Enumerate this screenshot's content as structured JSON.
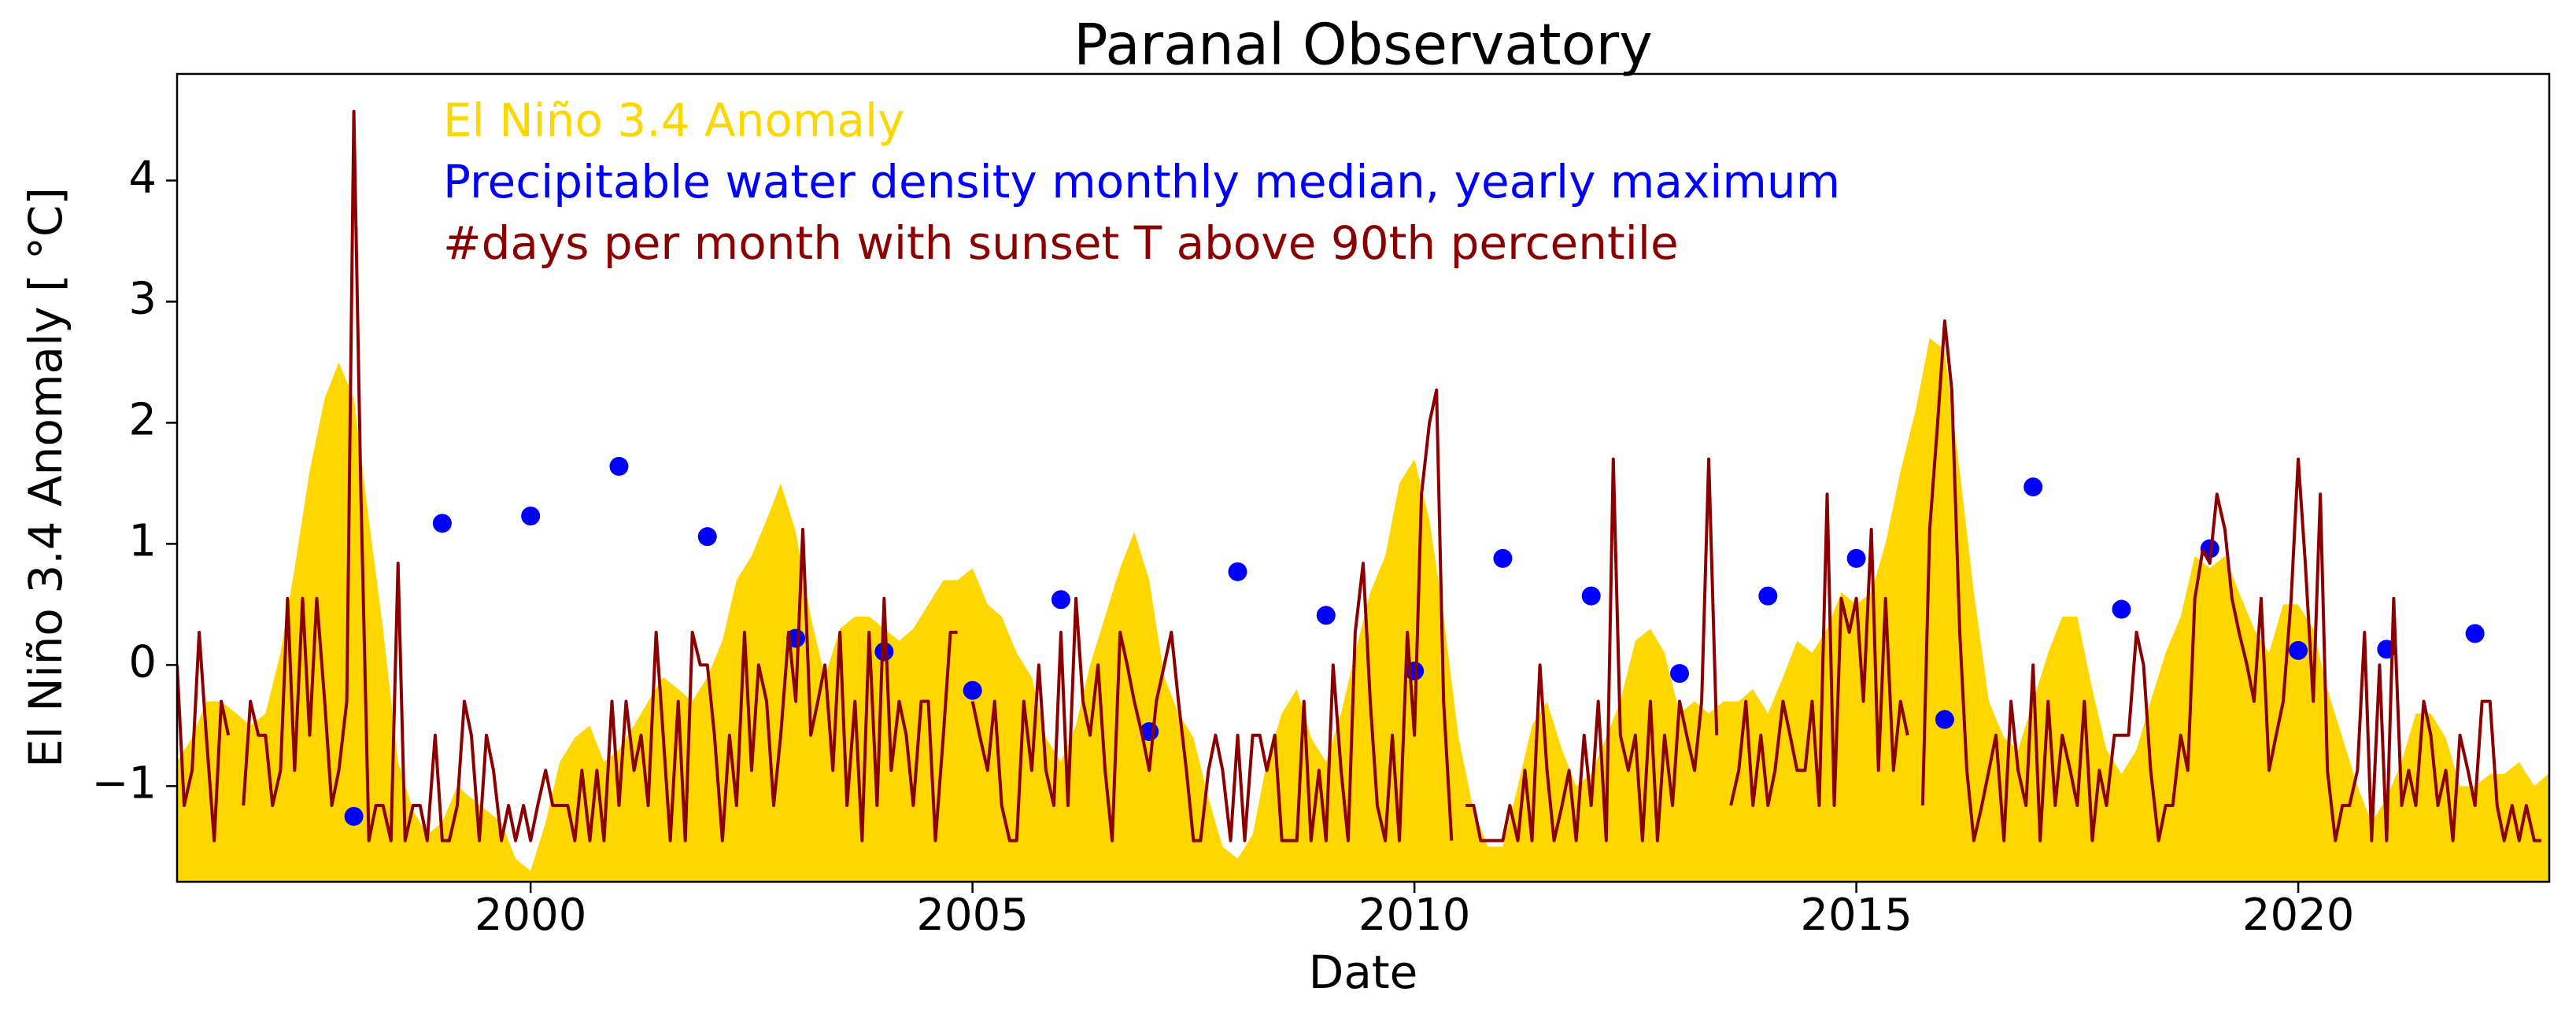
{
  "chart_data": {
    "type": "line",
    "title": "Paranal Observatory",
    "xlabel": "Date",
    "ylabel": "El Niño 3.4 Anomaly [ °C]",
    "xlim": [
      1996.0,
      2022.84
    ],
    "ylim": [
      -1.79,
      4.88
    ],
    "xticks": [
      2000,
      2005,
      2010,
      2015,
      2020
    ],
    "yticks": [
      {
        "value": -1,
        "label": "−1"
      },
      0,
      1,
      2,
      3,
      4
    ],
    "legend": "upper left",
    "series": [
      {
        "name": "El Niño 3.4 Anomaly",
        "type": "area",
        "color": "#ffd700",
        "x": [
          1996.0,
          1996.17,
          1996.33,
          1996.5,
          1996.67,
          1996.83,
          1997.0,
          1997.17,
          1997.33,
          1997.5,
          1997.67,
          1997.83,
          1998.0,
          1998.17,
          1998.33,
          1998.5,
          1998.67,
          1998.83,
          1999.0,
          1999.17,
          1999.33,
          1999.5,
          1999.67,
          1999.83,
          2000.0,
          2000.17,
          2000.33,
          2000.5,
          2000.67,
          2000.83,
          2001.0,
          2001.17,
          2001.33,
          2001.5,
          2001.67,
          2001.83,
          2002.0,
          2002.17,
          2002.33,
          2002.5,
          2002.67,
          2002.83,
          2003.0,
          2003.17,
          2003.33,
          2003.5,
          2003.67,
          2003.83,
          2004.0,
          2004.17,
          2004.33,
          2004.5,
          2004.67,
          2004.83,
          2005.0,
          2005.17,
          2005.33,
          2005.5,
          2005.67,
          2005.83,
          2006.0,
          2006.17,
          2006.33,
          2006.5,
          2006.67,
          2006.83,
          2007.0,
          2007.17,
          2007.33,
          2007.5,
          2007.67,
          2007.83,
          2008.0,
          2008.17,
          2008.33,
          2008.5,
          2008.67,
          2008.83,
          2009.0,
          2009.17,
          2009.33,
          2009.5,
          2009.67,
          2009.83,
          2010.0,
          2010.17,
          2010.33,
          2010.5,
          2010.67,
          2010.83,
          2011.0,
          2011.17,
          2011.33,
          2011.5,
          2011.67,
          2011.83,
          2012.0,
          2012.17,
          2012.33,
          2012.5,
          2012.67,
          2012.83,
          2013.0,
          2013.17,
          2013.33,
          2013.5,
          2013.67,
          2013.83,
          2014.0,
          2014.17,
          2014.33,
          2014.5,
          2014.67,
          2014.83,
          2015.0,
          2015.17,
          2015.33,
          2015.5,
          2015.67,
          2015.83,
          2016.0,
          2016.17,
          2016.33,
          2016.5,
          2016.67,
          2016.83,
          2017.0,
          2017.17,
          2017.33,
          2017.5,
          2017.67,
          2017.83,
          2018.0,
          2018.17,
          2018.33,
          2018.5,
          2018.67,
          2018.83,
          2019.0,
          2019.17,
          2019.33,
          2019.5,
          2019.67,
          2019.83,
          2020.0,
          2020.17,
          2020.33,
          2020.5,
          2020.67,
          2020.83,
          2021.0,
          2021.17,
          2021.33,
          2021.5,
          2021.67,
          2021.83,
          2022.0,
          2022.17,
          2022.33,
          2022.5,
          2022.67,
          2022.83
        ],
        "values": [
          -0.8,
          -0.6,
          -0.3,
          -0.3,
          -0.4,
          -0.5,
          -0.4,
          0.1,
          0.8,
          1.6,
          2.2,
          2.5,
          2.2,
          1.2,
          0.3,
          -0.8,
          -1.2,
          -1.4,
          -1.3,
          -1.0,
          -1.1,
          -1.2,
          -1.3,
          -1.6,
          -1.7,
          -1.3,
          -0.8,
          -0.6,
          -0.5,
          -0.8,
          -0.7,
          -0.5,
          -0.3,
          -0.1,
          -0.2,
          -0.3,
          -0.1,
          0.2,
          0.7,
          0.9,
          1.2,
          1.5,
          1.1,
          0.4,
          -0.1,
          0.3,
          0.4,
          0.4,
          0.3,
          0.2,
          0.3,
          0.5,
          0.7,
          0.7,
          0.8,
          0.5,
          0.4,
          0.1,
          -0.1,
          -0.6,
          -0.8,
          -0.5,
          0.0,
          0.4,
          0.8,
          1.1,
          0.7,
          -0.1,
          -0.4,
          -0.6,
          -1.1,
          -1.5,
          -1.6,
          -1.4,
          -0.8,
          -0.4,
          -0.2,
          -0.6,
          -0.8,
          -0.4,
          0.1,
          0.6,
          0.9,
          1.5,
          1.7,
          1.2,
          0.4,
          -0.6,
          -1.2,
          -1.5,
          -1.5,
          -1.0,
          -0.5,
          -0.3,
          -0.7,
          -1.0,
          -0.9,
          -0.6,
          -0.3,
          0.2,
          0.3,
          0.1,
          -0.4,
          -0.3,
          -0.4,
          -0.3,
          -0.3,
          -0.2,
          -0.4,
          -0.1,
          0.2,
          0.1,
          0.3,
          0.6,
          0.5,
          0.6,
          1.0,
          1.6,
          2.1,
          2.7,
          2.6,
          1.6,
          0.6,
          -0.3,
          -0.6,
          -0.7,
          -0.3,
          0.1,
          0.4,
          0.4,
          -0.2,
          -0.7,
          -0.9,
          -0.7,
          -0.3,
          0.1,
          0.4,
          0.9,
          0.8,
          0.9,
          0.6,
          0.3,
          0.1,
          0.5,
          0.5,
          0.3,
          -0.2,
          -0.6,
          -1.0,
          -1.3,
          -1.1,
          -0.8,
          -0.4,
          -0.4,
          -0.6,
          -1.0,
          -1.0,
          -0.9,
          -0.9,
          -0.8,
          -1.0,
          -0.9
        ]
      },
      {
        "name": "Precipitable water density monthly median, yearly maximum",
        "type": "scatter",
        "color": "#0000ff",
        "x": [
          1998,
          1999,
          2000,
          2001,
          2002,
          2003,
          2004,
          2005,
          2006,
          2007,
          2008,
          2009,
          2010,
          2011,
          2012,
          2013,
          2014,
          2015,
          2016,
          2017,
          2018,
          2019,
          2020,
          2021,
          2022
        ],
        "values": [
          -1.25,
          1.17,
          1.23,
          1.64,
          1.06,
          0.22,
          0.11,
          -0.21,
          0.54,
          -0.55,
          0.77,
          0.41,
          -0.05,
          0.88,
          0.57,
          -0.07,
          0.57,
          0.88,
          -0.45,
          1.47,
          0.46,
          0.96,
          0.12,
          0.13,
          0.26
        ]
      },
      {
        "name": "#days per month with sunset T above 90th percentile",
        "type": "line",
        "color": "#8b0000",
        "x": [
          1996.0,
          1996.08,
          1996.17,
          1996.25,
          1996.33,
          1996.42,
          1996.5,
          1996.58,
          1996.67,
          1996.75,
          1996.83,
          1996.92,
          1997.0,
          1997.08,
          1997.17,
          1997.25,
          1997.33,
          1997.42,
          1997.5,
          1997.58,
          1997.67,
          1997.75,
          1997.83,
          1997.92,
          1998.0,
          1998.08,
          1998.17,
          1998.25,
          1998.33,
          1998.42,
          1998.5,
          1998.58,
          1998.67,
          1998.75,
          1998.83,
          1998.92,
          1999.0,
          1999.08,
          1999.17,
          1999.25,
          1999.33,
          1999.42,
          1999.5,
          1999.58,
          1999.67,
          1999.75,
          1999.83,
          1999.92,
          2000.0,
          2000.08,
          2000.17,
          2000.25,
          2000.33,
          2000.42,
          2000.5,
          2000.58,
          2000.67,
          2000.75,
          2000.83,
          2000.92,
          2001.0,
          2001.08,
          2001.17,
          2001.25,
          2001.33,
          2001.42,
          2001.5,
          2001.58,
          2001.67,
          2001.75,
          2001.83,
          2001.92,
          2002.0,
          2002.08,
          2002.17,
          2002.25,
          2002.33,
          2002.42,
          2002.5,
          2002.58,
          2002.67,
          2002.75,
          2002.83,
          2002.92,
          2003.0,
          2003.08,
          2003.17,
          2003.25,
          2003.33,
          2003.42,
          2003.5,
          2003.58,
          2003.67,
          2003.75,
          2003.83,
          2003.92,
          2004.0,
          2004.08,
          2004.17,
          2004.25,
          2004.33,
          2004.42,
          2004.5,
          2004.58,
          2004.67,
          2004.75,
          2004.83,
          2004.92,
          2005.0,
          2005.08,
          2005.17,
          2005.25,
          2005.33,
          2005.42,
          2005.5,
          2005.58,
          2005.67,
          2005.75,
          2005.83,
          2005.92,
          2006.0,
          2006.08,
          2006.17,
          2006.25,
          2006.33,
          2006.42,
          2006.5,
          2006.58,
          2006.67,
          2006.75,
          2006.83,
          2006.92,
          2007.0,
          2007.08,
          2007.17,
          2007.25,
          2007.33,
          2007.42,
          2007.5,
          2007.58,
          2007.67,
          2007.75,
          2007.83,
          2007.92,
          2008.0,
          2008.08,
          2008.17,
          2008.25,
          2008.33,
          2008.42,
          2008.5,
          2008.58,
          2008.67,
          2008.75,
          2008.83,
          2008.92,
          2009.0,
          2009.08,
          2009.17,
          2009.25,
          2009.33,
          2009.42,
          2009.5,
          2009.58,
          2009.67,
          2009.75,
          2009.83,
          2009.92,
          2010.0,
          2010.08,
          2010.17,
          2010.25,
          2010.33,
          2010.42,
          2010.5,
          2010.58,
          2010.67,
          2010.75,
          2010.83,
          2010.92,
          2011.0,
          2011.08,
          2011.17,
          2011.25,
          2011.33,
          2011.42,
          2011.5,
          2011.58,
          2011.67,
          2011.75,
          2011.83,
          2011.92,
          2012.0,
          2012.08,
          2012.17,
          2012.25,
          2012.33,
          2012.42,
          2012.5,
          2012.58,
          2012.67,
          2012.75,
          2012.83,
          2012.92,
          2013.0,
          2013.08,
          2013.17,
          2013.25,
          2013.33,
          2013.42,
          2013.5,
          2013.58,
          2013.67,
          2013.75,
          2013.83,
          2013.92,
          2014.0,
          2014.08,
          2014.17,
          2014.25,
          2014.33,
          2014.42,
          2014.5,
          2014.58,
          2014.67,
          2014.75,
          2014.83,
          2014.92,
          2015.0,
          2015.08,
          2015.17,
          2015.25,
          2015.33,
          2015.42,
          2015.5,
          2015.58,
          2015.67,
          2015.75,
          2015.83,
          2015.92,
          2016.0,
          2016.08,
          2016.17,
          2016.25,
          2016.33,
          2016.42,
          2016.5,
          2016.58,
          2016.67,
          2016.75,
          2016.83,
          2016.92,
          2017.0,
          2017.08,
          2017.17,
          2017.25,
          2017.33,
          2017.42,
          2017.5,
          2017.58,
          2017.67,
          2017.75,
          2017.83,
          2017.92,
          2018.0,
          2018.08,
          2018.17,
          2018.25,
          2018.33,
          2018.42,
          2018.5,
          2018.58,
          2018.67,
          2018.75,
          2018.83,
          2018.92,
          2019.0,
          2019.08,
          2019.17,
          2019.25,
          2019.33,
          2019.42,
          2019.5,
          2019.58,
          2019.67,
          2019.75,
          2019.83,
          2019.92,
          2020.0,
          2020.08,
          2020.17,
          2020.25,
          2020.33,
          2020.42,
          2020.5,
          2020.58,
          2020.67,
          2020.75,
          2020.83,
          2020.92,
          2021.0,
          2021.08,
          2021.17,
          2021.25,
          2021.33,
          2021.42,
          2021.5,
          2021.58,
          2021.67,
          2021.75,
          2021.83,
          2021.92,
          2022.0,
          2022.08,
          2022.17,
          2022.25,
          2022.33,
          2022.42,
          2022.5,
          2022.58,
          2022.67,
          2022.75
        ],
        "values": [
          0,
          -1.16,
          -0.87,
          0.27,
          -0.58,
          -1.45,
          -0.3,
          -0.58,
          null,
          -1.16,
          -0.3,
          -0.58,
          -0.58,
          -1.16,
          -0.87,
          0.55,
          -0.87,
          0.55,
          -0.58,
          0.55,
          -0.3,
          -1.16,
          -0.87,
          -0.3,
          4.57,
          1.41,
          -1.45,
          -1.16,
          -1.16,
          -1.45,
          0.84,
          -1.45,
          -1.16,
          -1.16,
          -1.45,
          -0.58,
          -1.45,
          -1.45,
          -1.16,
          -0.3,
          -0.58,
          -1.45,
          -0.58,
          -0.87,
          -1.45,
          -1.16,
          -1.45,
          -1.16,
          -1.45,
          -1.16,
          -0.87,
          -1.16,
          -1.16,
          -1.16,
          -1.45,
          -0.87,
          -1.45,
          -0.87,
          -1.45,
          -0.3,
          -1.16,
          -0.3,
          -0.87,
          -0.58,
          -1.16,
          0.27,
          -0.58,
          -1.45,
          -0.3,
          -1.45,
          0.27,
          0,
          0,
          -0.58,
          -1.45,
          -0.58,
          -1.16,
          0.27,
          -0.87,
          0,
          -0.3,
          -1.16,
          -0.58,
          0.27,
          -0.3,
          1.12,
          -0.58,
          -0.3,
          0,
          -0.87,
          0.27,
          -1.16,
          -0.3,
          -1.45,
          0.27,
          -1.16,
          0.55,
          -0.87,
          -0.3,
          -0.58,
          -1.16,
          -0.3,
          -0.3,
          -1.45,
          -0.58,
          0.27,
          0.27,
          null,
          -0.3,
          -0.58,
          -0.87,
          -0.3,
          -1.16,
          -1.45,
          -1.45,
          -0.3,
          -0.87,
          0,
          -0.87,
          -1.16,
          0.27,
          -1.16,
          0.55,
          -0.3,
          -0.58,
          0,
          -0.87,
          -1.45,
          0.27,
          0,
          -0.3,
          -0.58,
          -0.87,
          -0.3,
          0,
          0.27,
          -0.3,
          -0.87,
          -1.45,
          -1.45,
          -0.87,
          -0.58,
          -0.87,
          -1.45,
          -0.58,
          -1.45,
          -0.58,
          -0.58,
          -0.87,
          -0.58,
          -1.45,
          -1.45,
          -1.45,
          -0.3,
          -1.45,
          -0.87,
          -1.45,
          0,
          -0.87,
          -1.45,
          0.27,
          0.84,
          -0.3,
          -1.16,
          -1.45,
          -0.58,
          -1.45,
          0.27,
          -0.58,
          1.41,
          2.0,
          2.27,
          -0.3,
          -1.45,
          null,
          -1.16,
          -1.16,
          -1.45,
          -1.45,
          -1.45,
          -1.45,
          -1.16,
          -1.45,
          -0.87,
          -1.45,
          0,
          -0.87,
          -1.45,
          -1.16,
          -0.87,
          -1.45,
          -0.58,
          -1.16,
          -0.3,
          -1.45,
          1.7,
          -0.58,
          -0.87,
          -0.58,
          -1.45,
          -0.3,
          -1.45,
          -0.58,
          -1.16,
          -0.3,
          -0.58,
          -0.87,
          -0.3,
          1.7,
          -0.58,
          null,
          -1.16,
          -0.87,
          -0.3,
          -1.16,
          -0.58,
          -1.16,
          -0.87,
          -0.3,
          -0.58,
          -0.87,
          -0.87,
          -0.3,
          -1.16,
          1.41,
          -1.16,
          0.55,
          0.27,
          0.55,
          -0.3,
          1.12,
          -0.87,
          0.55,
          -0.87,
          -0.3,
          -0.58,
          null,
          -1.16,
          1.12,
          2.0,
          2.84,
          2.27,
          0.27,
          -0.87,
          -1.45,
          -1.16,
          -0.87,
          -0.58,
          -1.45,
          -0.3,
          -0.87,
          -1.16,
          0,
          -1.45,
          -0.3,
          -1.16,
          -0.58,
          -0.87,
          -1.16,
          -0.3,
          -1.45,
          -0.87,
          -1.16,
          -0.58,
          -0.58,
          -0.58,
          0.27,
          0,
          -0.87,
          -1.45,
          -1.16,
          -1.16,
          -0.58,
          -0.87,
          0.55,
          0.95,
          0.84,
          1.41,
          1.12,
          0.55,
          0.27,
          0,
          -0.3,
          0.55,
          -0.87,
          -0.58,
          -0.3,
          0.55,
          1.7,
          0.84,
          -0.3,
          1.41,
          -0.87,
          -1.45,
          -1.16,
          -1.16,
          -0.87,
          0.27,
          -1.45,
          0,
          -1.45,
          0.55,
          -1.16,
          -0.87,
          -1.16,
          -0.3,
          -0.58,
          -1.16,
          -0.87,
          -1.45,
          -0.58,
          -0.87,
          -1.16,
          -0.3,
          -0.3,
          -1.16,
          -1.45,
          -1.16,
          -1.45,
          -1.16,
          -1.45,
          -1.45
        ]
      }
    ]
  }
}
